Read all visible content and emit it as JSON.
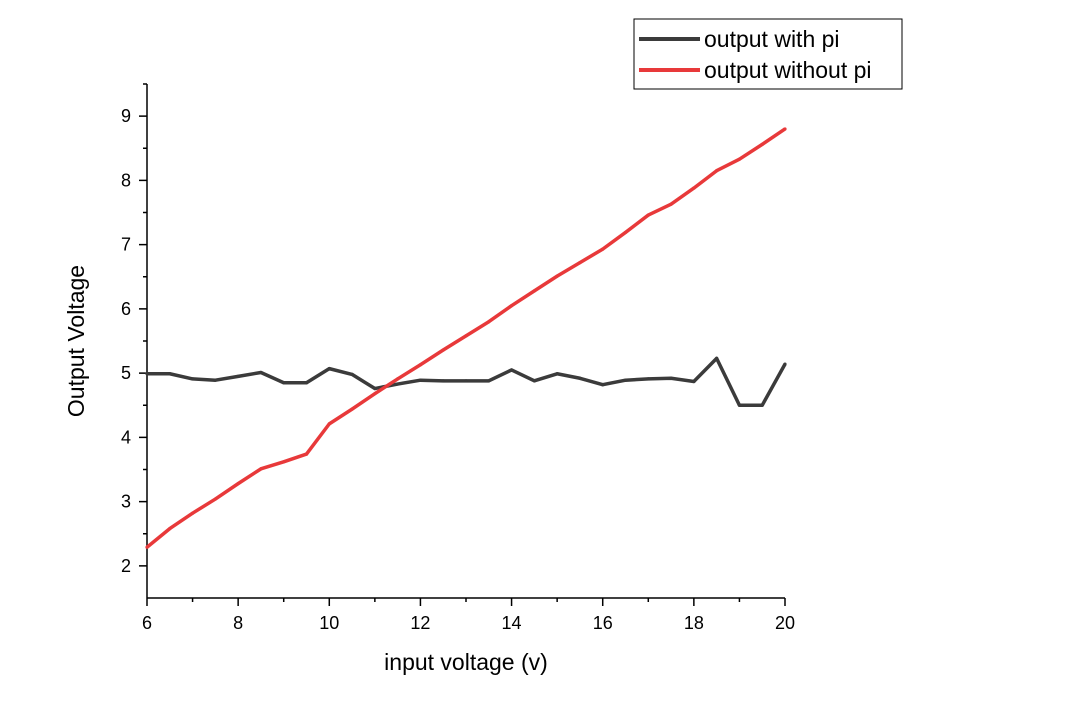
{
  "chart_data": {
    "type": "line",
    "xlabel": "input voltage (v)",
    "ylabel": "Output Voltage",
    "xlim": [
      6,
      20
    ],
    "ylim": [
      1.5,
      9.5
    ],
    "x_ticks": [
      "6",
      "8",
      "10",
      "12",
      "14",
      "16",
      "18",
      "20"
    ],
    "y_ticks": [
      "2",
      "3",
      "4",
      "5",
      "6",
      "7",
      "8",
      "9"
    ],
    "legend_position": "top-right",
    "grid": false,
    "x": [
      6,
      6.5,
      7,
      7.5,
      8,
      8.5,
      9,
      9.5,
      10,
      10.5,
      11,
      11.5,
      12,
      12.5,
      13,
      13.5,
      14,
      14.5,
      15,
      15.5,
      16,
      16.5,
      17,
      17.5,
      18,
      18.5,
      19,
      19.5,
      20
    ],
    "series": [
      {
        "name": "output with pi",
        "color": "#3b3b3b",
        "values": [
          4.99,
          4.99,
          4.91,
          4.89,
          4.95,
          5.01,
          4.85,
          4.85,
          5.07,
          4.98,
          4.76,
          4.83,
          4.89,
          4.88,
          4.88,
          4.88,
          5.05,
          4.88,
          4.99,
          4.92,
          4.82,
          4.89,
          4.91,
          4.92,
          4.87,
          5.23,
          4.5,
          4.5,
          5.14
        ]
      },
      {
        "name": "output without pi",
        "color": "#e8393a",
        "values": [
          2.29,
          2.58,
          2.82,
          3.04,
          3.28,
          3.51,
          3.62,
          3.74,
          4.21,
          4.44,
          4.68,
          4.91,
          5.13,
          5.36,
          5.58,
          5.8,
          6.05,
          6.28,
          6.51,
          6.72,
          6.93,
          7.19,
          7.46,
          7.63,
          7.88,
          8.15,
          8.33,
          8.56,
          8.8
        ]
      }
    ]
  }
}
